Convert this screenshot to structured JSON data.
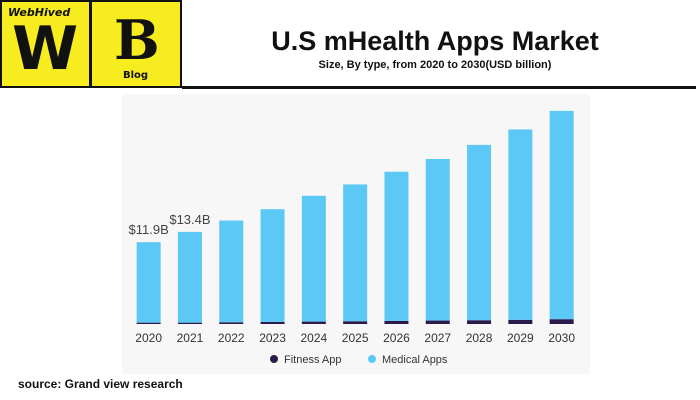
{
  "logo": {
    "brand": "WebHived",
    "letter_w": "W",
    "letter_b": "B",
    "blog": "Blog"
  },
  "header": {
    "title": "U.S  mHealth Apps Market",
    "subtitle": "Size, By type, from 2020 to 2030(USD billion)"
  },
  "source": "source: Grand view research",
  "colors": {
    "fitness": "#2b1a4a",
    "medical": "#5bc8f5",
    "logo_bg": "#f7ec1f"
  },
  "chart_data": {
    "type": "bar",
    "stacked": true,
    "categories": [
      "2020",
      "2021",
      "2022",
      "2023",
      "2024",
      "2025",
      "2026",
      "2027",
      "2028",
      "2029",
      "2030"
    ],
    "series": [
      {
        "name": "Fitness App",
        "values": [
          0.2,
          0.2,
          0.25,
          0.3,
          0.35,
          0.4,
          0.45,
          0.5,
          0.55,
          0.6,
          0.7
        ]
      },
      {
        "name": "Medical Apps",
        "values": [
          11.7,
          13.2,
          14.8,
          16.4,
          18.3,
          19.9,
          21.7,
          23.5,
          25.5,
          27.7,
          30.3
        ]
      }
    ],
    "data_labels": [
      {
        "category": "2020",
        "text": "$11.9B"
      },
      {
        "category": "2021",
        "text": "$13.4B"
      }
    ],
    "ylim": [
      0,
      32
    ],
    "legend": "bottom",
    "grid": false
  }
}
